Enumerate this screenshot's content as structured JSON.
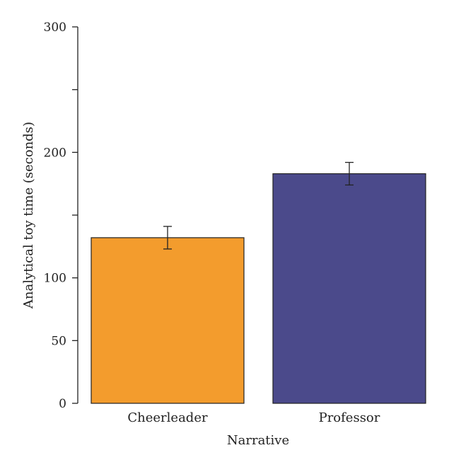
{
  "chart_data": {
    "type": "bar",
    "title": "",
    "xlabel": "Narrative",
    "ylabel": "Analytical toy time (seconds)",
    "ylim": [
      0,
      300
    ],
    "yticks": [
      0,
      50,
      100,
      200,
      300
    ],
    "minor_ticks": [
      150,
      250
    ],
    "categories": [
      "Cheerleader",
      "Professor"
    ],
    "values": [
      132,
      183
    ],
    "error_low": [
      123,
      174
    ],
    "error_high": [
      141,
      192
    ],
    "colors": [
      "#F39C2D",
      "#4B4A8B"
    ],
    "grid": false,
    "legend": "none"
  }
}
